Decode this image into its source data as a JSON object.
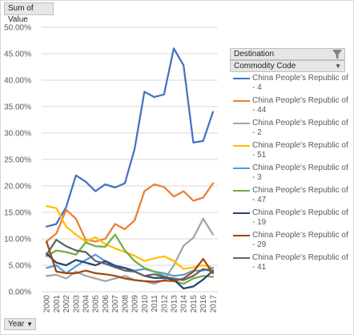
{
  "fields": {
    "value_field": "Sum of Value",
    "axis_field": "Year",
    "legend_field": "Destination",
    "commodity_field": "Commodity Code"
  },
  "icons": {
    "filter": "filter-icon",
    "dropdown": "dropdown-arrow-icon"
  },
  "legend": {
    "items": [
      {
        "label": "China  People's Republic of - 4",
        "color": "#4472c4"
      },
      {
        "label": "China  People's Republic of - 44",
        "color": "#ed7d31"
      },
      {
        "label": "China  People's Republic of - 2",
        "color": "#a5a5a5"
      },
      {
        "label": "China  People's Republic of - 51",
        "color": "#ffc000"
      },
      {
        "label": "China  People's Republic of - 3",
        "color": "#5b9bd5"
      },
      {
        "label": "China  People's Republic of - 47",
        "color": "#70ad47"
      },
      {
        "label": "China  People's Republic of - 19",
        "color": "#264478"
      },
      {
        "label": "China  People's Republic of - 29",
        "color": "#9e480e"
      },
      {
        "label": "China  People's Republic of - 41",
        "color": "#636363"
      }
    ]
  },
  "chart_data": {
    "type": "line",
    "title": "",
    "xlabel": "Year",
    "ylabel": "Sum of Value",
    "categories": [
      "2000",
      "2001",
      "2002",
      "2003",
      "2004",
      "2005",
      "2006",
      "2007",
      "2008",
      "2009",
      "2010",
      "2011",
      "2012",
      "2013",
      "2014",
      "2015",
      "2016",
      "2017"
    ],
    "yticks": [
      "0.00%",
      "5.00%",
      "10.00%",
      "15.00%",
      "20.00%",
      "25.00%",
      "30.00%",
      "35.00%",
      "40.00%",
      "45.00%",
      "50.00%"
    ],
    "ylim": [
      0,
      50
    ],
    "y_unit": "percent",
    "grid": true,
    "legend_position": "right",
    "series": [
      {
        "name": "China  People's Republic of - 4",
        "color": "#4472c4",
        "values": [
          12.3,
          12.8,
          16.0,
          22.0,
          20.8,
          19.0,
          20.3,
          19.7,
          20.5,
          27.0,
          37.8,
          36.8,
          37.3,
          46.0,
          42.8,
          28.2,
          28.5,
          34.0
        ]
      },
      {
        "name": "China  People's Republic of - 44",
        "color": "#ed7d31",
        "values": [
          9.5,
          11.0,
          15.5,
          13.8,
          9.8,
          9.5,
          10.0,
          12.8,
          11.8,
          13.5,
          19.0,
          20.3,
          19.8,
          18.0,
          19.0,
          17.2,
          17.8,
          20.5
        ]
      },
      {
        "name": "China  People's Republic of - 2",
        "color": "#a5a5a5",
        "values": [
          3.0,
          3.2,
          2.5,
          3.8,
          3.0,
          2.5,
          2.0,
          2.5,
          3.0,
          2.2,
          2.0,
          1.5,
          2.2,
          5.0,
          8.7,
          10.2,
          13.8,
          10.8
        ]
      },
      {
        "name": "China  People's Republic of - 51",
        "color": "#ffc000",
        "values": [
          16.2,
          15.8,
          12.3,
          10.8,
          9.5,
          10.3,
          9.0,
          8.2,
          7.5,
          6.8,
          5.8,
          6.3,
          6.7,
          5.8,
          4.3,
          4.6,
          5.0,
          4.5
        ]
      },
      {
        "name": "China  People's Republic of - 3",
        "color": "#5b9bd5",
        "values": [
          4.5,
          5.0,
          3.5,
          4.8,
          6.0,
          7.0,
          5.8,
          5.0,
          4.5,
          4.0,
          4.3,
          3.8,
          3.5,
          3.0,
          3.2,
          4.0,
          4.0,
          4.5
        ]
      },
      {
        "name": "China  People's Republic of - 47",
        "color": "#70ad47",
        "values": [
          6.7,
          7.8,
          7.5,
          7.0,
          9.3,
          8.6,
          8.5,
          10.8,
          7.8,
          5.8,
          4.5,
          3.8,
          3.0,
          2.0,
          1.5,
          2.5,
          3.0,
          2.8
        ]
      },
      {
        "name": "China  People's Republic of - 19",
        "color": "#264478",
        "values": [
          7.2,
          5.5,
          5.0,
          6.0,
          5.5,
          5.0,
          5.8,
          4.8,
          4.5,
          3.8,
          3.0,
          2.6,
          2.6,
          2.3,
          0.6,
          1.0,
          2.3,
          4.0
        ]
      },
      {
        "name": "China  People's Republic of - 29",
        "color": "#9e480e",
        "values": [
          9.5,
          3.8,
          3.5,
          3.5,
          4.0,
          3.5,
          3.3,
          3.0,
          2.5,
          2.2,
          2.0,
          1.9,
          2.1,
          2.0,
          2.5,
          3.8,
          6.2,
          3.5
        ]
      },
      {
        "name": "China  People's Republic of - 41",
        "color": "#636363",
        "values": [
          7.0,
          9.8,
          8.6,
          7.8,
          7.5,
          5.8,
          5.3,
          4.6,
          4.0,
          3.8,
          3.0,
          3.3,
          2.8,
          2.5,
          2.2,
          3.0,
          4.3,
          3.8
        ]
      }
    ]
  }
}
